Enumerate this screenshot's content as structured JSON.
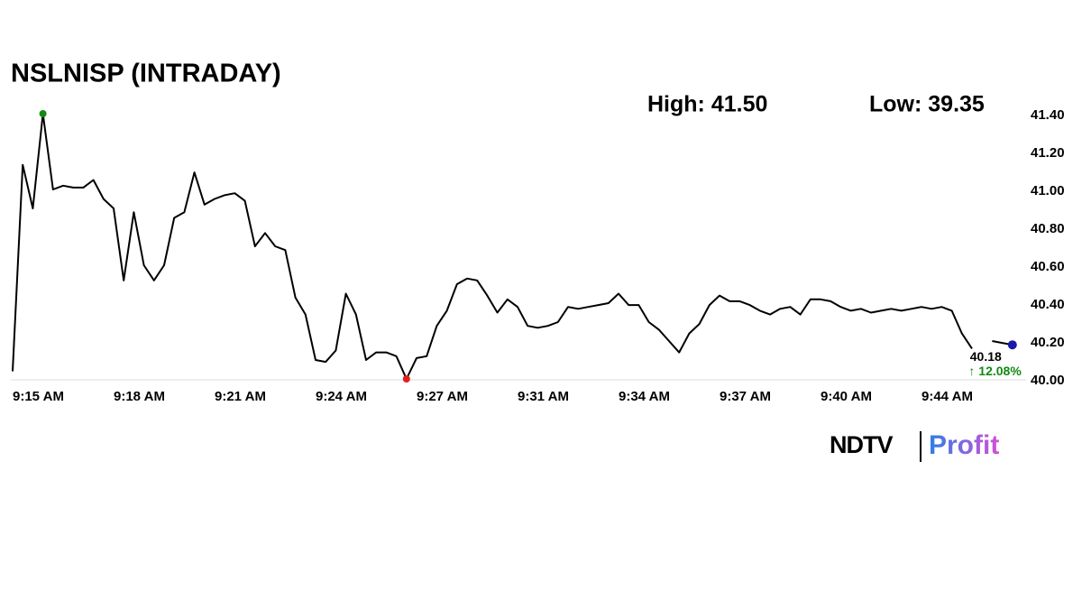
{
  "chart_data": {
    "type": "line",
    "title": "NSLNISP (INTRADAY)",
    "annotations": {
      "high": "High: 41.50",
      "low": "Low: 39.35",
      "change": "↑ 12.08%"
    },
    "categories": [
      "9:15 AM",
      null,
      null,
      null,
      null,
      null,
      null,
      null,
      null,
      null,
      "9:18 AM",
      null,
      null,
      null,
      null,
      null,
      null,
      null,
      null,
      null,
      "9:21 AM",
      null,
      null,
      null,
      null,
      null,
      null,
      null,
      null,
      null,
      "9:24 AM",
      null,
      null,
      null,
      null,
      null,
      null,
      null,
      null,
      null,
      "9:27 AM",
      null,
      null,
      null,
      null,
      null,
      null,
      null,
      null,
      null,
      "9:31 AM",
      null,
      null,
      null,
      null,
      null,
      null,
      null,
      null,
      null,
      "9:34 AM",
      null,
      null,
      null,
      null,
      null,
      null,
      null,
      null,
      null,
      "9:37 AM",
      null,
      null,
      null,
      null,
      null,
      null,
      null,
      null,
      null,
      "9:40 AM",
      null,
      null,
      null,
      null,
      null,
      null,
      null,
      null,
      null,
      "9:44 AM",
      null,
      null,
      null,
      null,
      null,
      null,
      null,
      null,
      null
    ],
    "series": [
      {
        "color": "#000000",
        "values": [
          40.04,
          41.13,
          40.9,
          41.4,
          41.0,
          41.02,
          41.01,
          41.01,
          41.05,
          40.95,
          40.9,
          40.52,
          40.88,
          40.6,
          40.52,
          40.6,
          40.85,
          40.88,
          41.09,
          40.92,
          40.95,
          40.97,
          40.98,
          40.94,
          40.7,
          40.77,
          40.7,
          40.68,
          40.43,
          40.34,
          40.1,
          40.09,
          40.15,
          40.45,
          40.34,
          40.1,
          40.14,
          40.14,
          40.12,
          40.0,
          40.11,
          40.12,
          40.28,
          40.36,
          40.5,
          40.53,
          40.52,
          40.44,
          40.35,
          40.42,
          40.38,
          40.28,
          40.27,
          40.28,
          40.3,
          40.38,
          40.37,
          40.38,
          40.39,
          40.4,
          40.45,
          40.39,
          40.39,
          40.3,
          40.26,
          40.2,
          40.14,
          40.24,
          40.29,
          40.39,
          40.44,
          40.41,
          40.41,
          40.39,
          40.36,
          40.34,
          40.37,
          40.38,
          40.34,
          40.42,
          40.42,
          40.41,
          40.38,
          40.36,
          40.37,
          40.35,
          40.36,
          40.37,
          40.36,
          40.37,
          40.38,
          40.37,
          40.38,
          40.36,
          40.24,
          40.16,
          null,
          40.2,
          40.19,
          40.18
        ]
      }
    ],
    "ylim": [
      40.0,
      41.4
    ],
    "yticks": [
      {
        "value": 40.0,
        "label": "40.00"
      },
      {
        "value": 40.2,
        "label": "40.20"
      },
      {
        "value": 40.4,
        "label": "40.40"
      },
      {
        "value": 40.6,
        "label": "40.60"
      },
      {
        "value": 40.8,
        "label": "40.80"
      },
      {
        "value": 41.0,
        "label": "41.00"
      },
      {
        "value": 41.2,
        "label": "41.20"
      },
      {
        "value": 41.4,
        "label": "41.40"
      }
    ],
    "grid": false,
    "high_marker_color": "#138a13",
    "low_marker_color": "#e02020",
    "last_marker_color": "#1a1aa8",
    "change_color": "#138a13"
  },
  "branding": {
    "left": "NDTV",
    "right": "Profit"
  }
}
